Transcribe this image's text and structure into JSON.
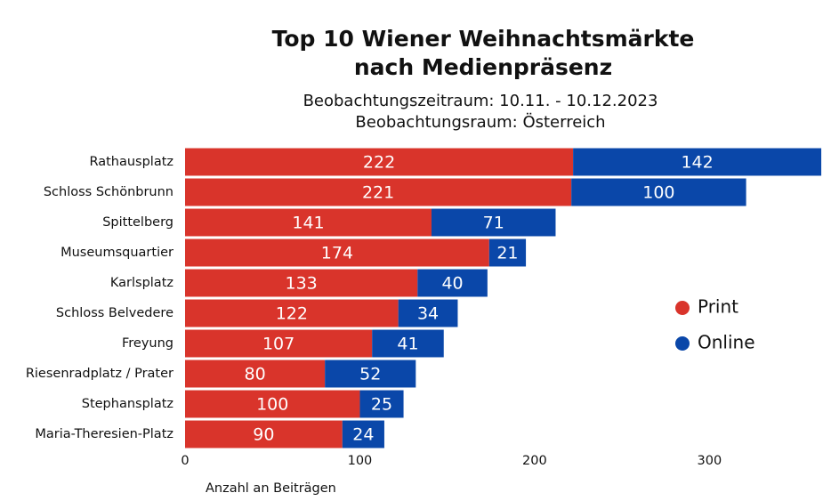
{
  "chart_data": {
    "type": "bar",
    "orientation": "horizontal",
    "stacked": true,
    "title": [
      "Top 10 Wiener Weihnachtsmärkte",
      "nach Medienpräsenz"
    ],
    "subtitle": [
      "Beobachtungszeitraum: 10.11. - 10.12.2023",
      "Beobachtungsraum: Österreich"
    ],
    "xlabel": "Anzahl an Beiträgen",
    "categories": [
      "Rathausplatz",
      "Schloss Schönbrunn",
      "Spittelberg",
      "Museumsquartier",
      "Karlsplatz",
      "Schloss Belvedere",
      "Freyung",
      "Riesenradplatz / Prater",
      "Stephansplatz",
      "Maria-Theresien-Platz"
    ],
    "series": [
      {
        "name": "Print",
        "color": "#d9342b",
        "values": [
          222,
          221,
          141,
          174,
          133,
          122,
          107,
          80,
          100,
          90
        ]
      },
      {
        "name": "Online",
        "color": "#0a47a9",
        "values": [
          142,
          100,
          71,
          21,
          40,
          34,
          41,
          52,
          25,
          24
        ]
      }
    ],
    "xlim": [
      0,
      366
    ],
    "xticks": [
      0,
      100,
      200,
      300
    ],
    "grid": false,
    "legend": "right"
  }
}
